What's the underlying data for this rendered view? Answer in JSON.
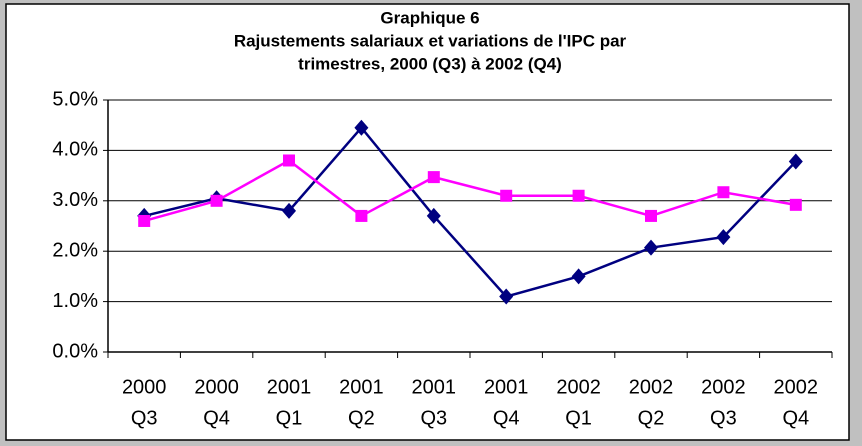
{
  "chart_data": {
    "type": "line",
    "title": [
      "Graphique 6",
      "Rajustements salariaux et variations de l'IPC par",
      "trimestres, 2000 (Q3) à 2002 (Q4)"
    ],
    "categories": [
      [
        "2000",
        "Q3"
      ],
      [
        "2000",
        "Q4"
      ],
      [
        "2001",
        "Q1"
      ],
      [
        "2001",
        "Q2"
      ],
      [
        "2001",
        "Q3"
      ],
      [
        "2001",
        "Q4"
      ],
      [
        "2002",
        "Q1"
      ],
      [
        "2002",
        "Q2"
      ],
      [
        "2002",
        "Q3"
      ],
      [
        "2002",
        "Q4"
      ]
    ],
    "series": [
      {
        "color": "#000080",
        "marker": "diamond",
        "values": [
          2.7,
          3.05,
          2.8,
          4.45,
          2.7,
          1.1,
          1.5,
          2.07,
          2.28,
          3.78
        ]
      },
      {
        "color": "#ff00ff",
        "marker": "square",
        "values": [
          2.6,
          3.0,
          3.8,
          2.7,
          3.47,
          3.1,
          3.1,
          2.7,
          3.17,
          2.92
        ]
      }
    ],
    "ylim": [
      0,
      5
    ],
    "yticks": [
      {
        "value": 0,
        "label": "0.0%"
      },
      {
        "value": 1,
        "label": "1.0%"
      },
      {
        "value": 2,
        "label": "2.0%"
      },
      {
        "value": 3,
        "label": "3.0%"
      },
      {
        "value": 4,
        "label": "4.0%"
      },
      {
        "value": 5,
        "label": "5.0%"
      }
    ],
    "grid": true
  }
}
